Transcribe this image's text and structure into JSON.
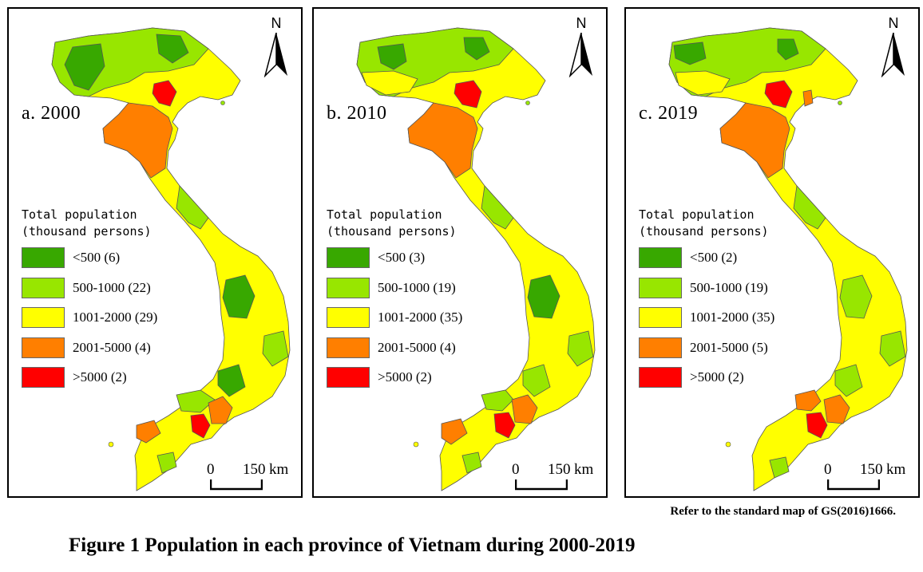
{
  "panels": [
    {
      "label": "a. 2000",
      "legend": {
        "title_line1": "Total population",
        "title_line2": "(thousand persons)",
        "items": [
          {
            "label": "<500 (6)",
            "color": "#38a800"
          },
          {
            "label": "500-1000 (22)",
            "color": "#98e600"
          },
          {
            "label": "1001-2000 (29)",
            "color": "#ffff00"
          },
          {
            "label": "2001-5000 (4)",
            "color": "#ff7f00"
          },
          {
            "label": ">5000 (2)",
            "color": "#ff0000"
          }
        ]
      },
      "north": "N",
      "scale": {
        "zero": "0",
        "distance": "150",
        "unit": "km"
      }
    },
    {
      "label": "b. 2010",
      "legend": {
        "title_line1": "Total population",
        "title_line2": "(thousand persons)",
        "items": [
          {
            "label": "<500 (3)",
            "color": "#38a800"
          },
          {
            "label": "500-1000 (19)",
            "color": "#98e600"
          },
          {
            "label": "1001-2000 (35)",
            "color": "#ffff00"
          },
          {
            "label": "2001-5000 (4)",
            "color": "#ff7f00"
          },
          {
            "label": ">5000 (2)",
            "color": "#ff0000"
          }
        ]
      },
      "north": "N",
      "scale": {
        "zero": "0",
        "distance": "150",
        "unit": "km"
      }
    },
    {
      "label": "c. 2019",
      "legend": {
        "title_line1": "Total population",
        "title_line2": "(thousand persons)",
        "items": [
          {
            "label": "<500 (2)",
            "color": "#38a800"
          },
          {
            "label": "500-1000 (19)",
            "color": "#98e600"
          },
          {
            "label": "1001-2000 (35)",
            "color": "#ffff00"
          },
          {
            "label": "2001-5000 (5)",
            "color": "#ff7f00"
          },
          {
            "label": ">5000 (2)",
            "color": "#ff0000"
          }
        ]
      },
      "north": "N",
      "scale": {
        "zero": "0",
        "distance": "150",
        "unit": "km"
      }
    }
  ],
  "source_note": "Refer to the standard map of GS(2016)1666.",
  "caption": "Figure 1  Population in each province of Vietnam during 2000-2019"
}
